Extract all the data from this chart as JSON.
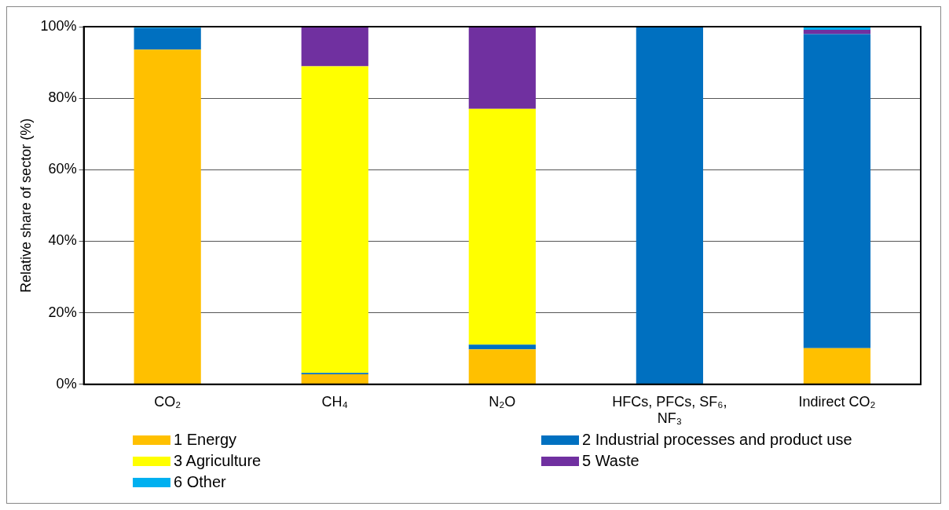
{
  "chart_data": {
    "type": "bar",
    "stacked": true,
    "ylabel": "Relative share of sector (%)",
    "categories": [
      "CO₂",
      "CH₄",
      "N₂O",
      "HFCs, PFCs, SF₆, NF₃",
      "Indirect CO₂"
    ],
    "series": [
      {
        "name": "1 Energy",
        "color": "#ffc000",
        "values": [
          93.6,
          2.8,
          9.8,
          0,
          10.1
        ]
      },
      {
        "name": "2 Industrial processes and product use",
        "color": "#0070c0",
        "values": [
          6.0,
          0.4,
          1.3,
          100,
          87.8
        ]
      },
      {
        "name": "3 Agriculture",
        "color": "#ffff00",
        "values": [
          0,
          85.7,
          65.9,
          0,
          0
        ]
      },
      {
        "name": "5 Waste",
        "color": "#7030a0",
        "values": [
          0,
          11.1,
          23.0,
          0,
          1.2
        ]
      },
      {
        "name": "6 Other",
        "color": "#00b0f0",
        "values": [
          0.4,
          0,
          0,
          0,
          0.9
        ]
      }
    ],
    "ylim": [
      0,
      100
    ],
    "yticks": [
      {
        "value": 0,
        "label": "0%"
      },
      {
        "value": 20,
        "label": "20%"
      },
      {
        "value": 40,
        "label": "40%"
      },
      {
        "value": 60,
        "label": "60%"
      },
      {
        "value": 80,
        "label": "80%"
      },
      {
        "value": 100,
        "label": "100%"
      }
    ],
    "grid": "y",
    "legend": "bottom"
  }
}
